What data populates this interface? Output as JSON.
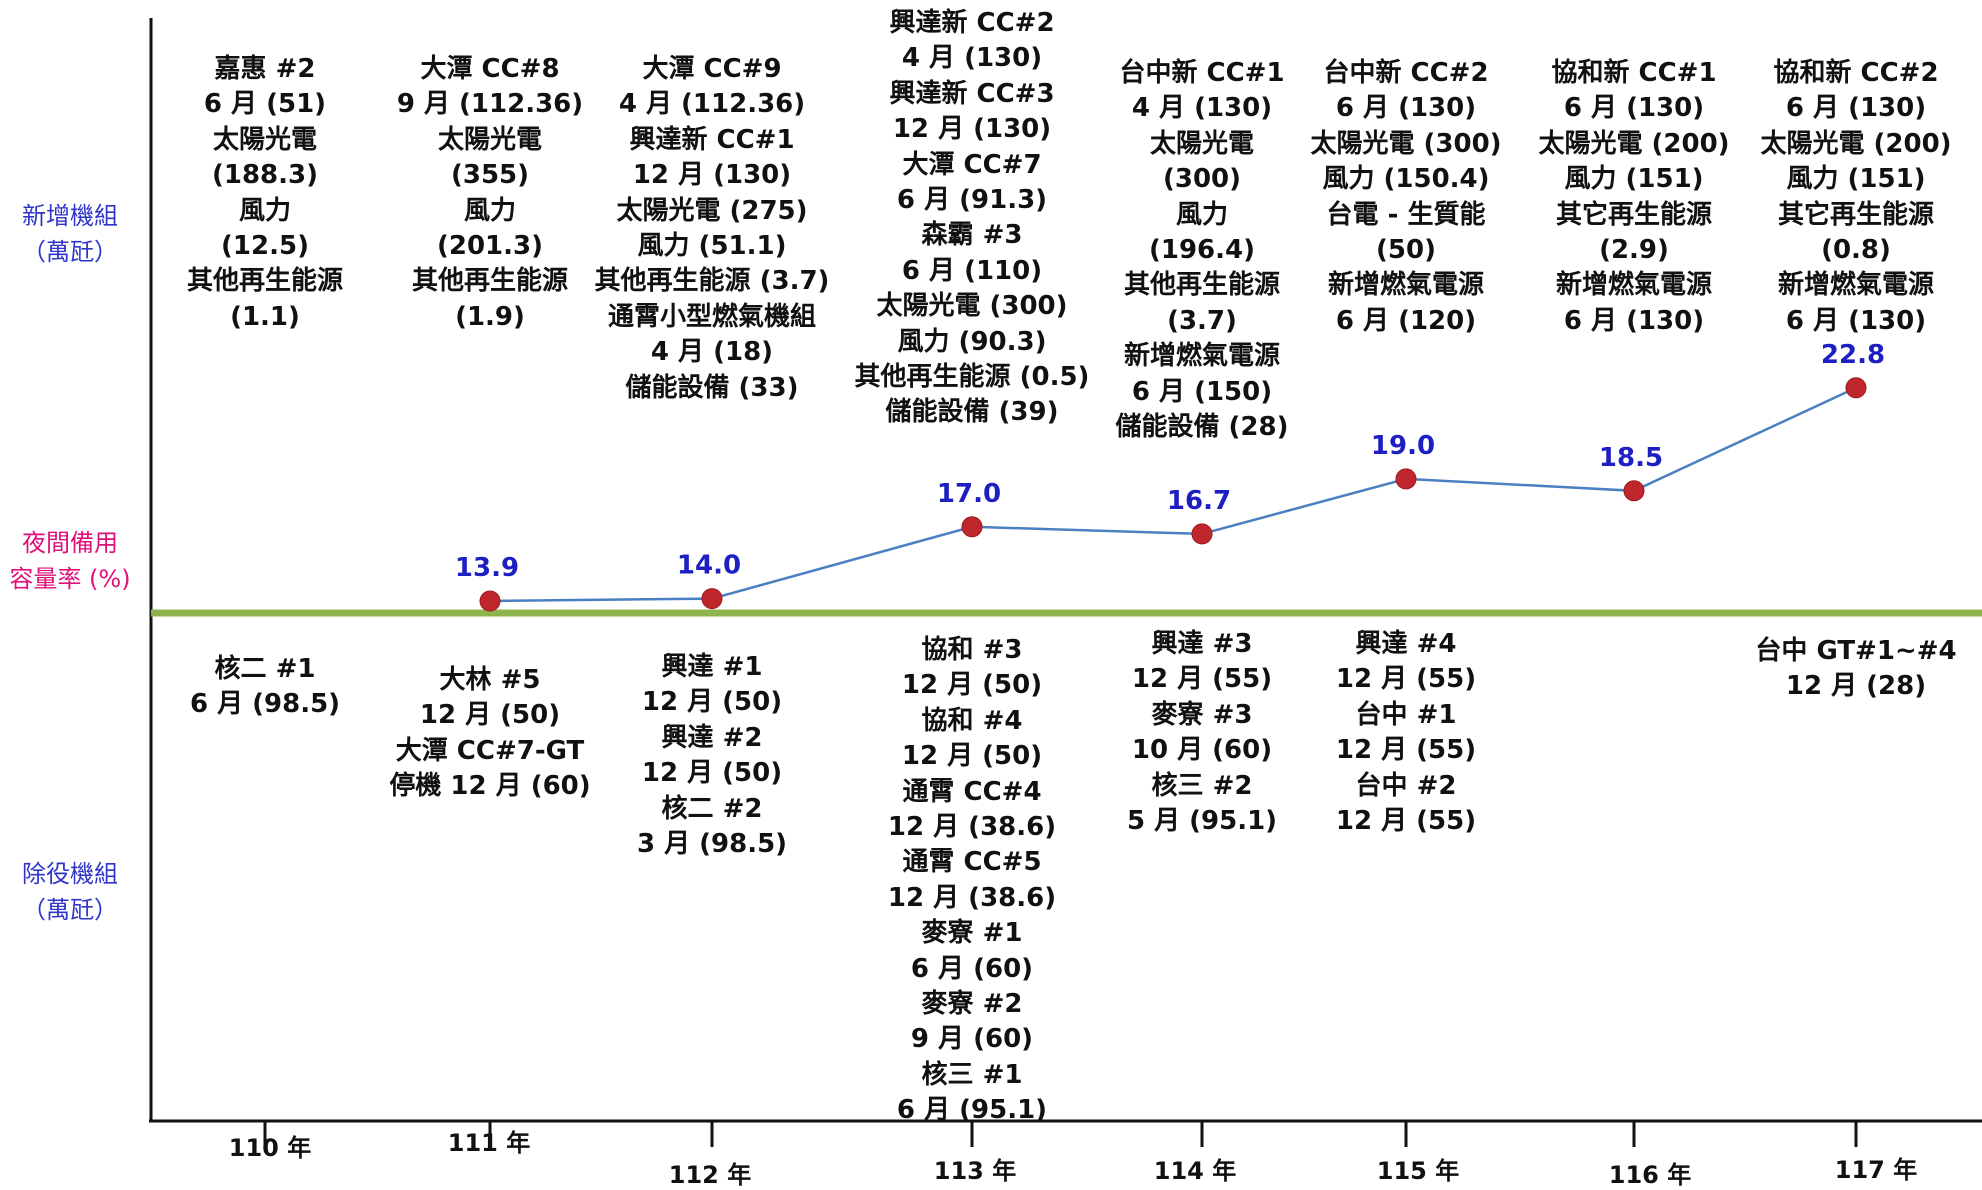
{
  "labels": {
    "new_units": [
      "新增機組",
      "（萬瓩）"
    ],
    "reserve": [
      "夜間備用",
      "容量率 (%)"
    ],
    "retired_units": [
      "除役機組",
      "（萬瓩）"
    ]
  },
  "additions": [
    [
      "嘉惠 #2",
      "6 月 (51)",
      "太陽光電",
      "(188.3)",
      "風力",
      "(12.5)",
      "其他再生能源",
      "(1.1)"
    ],
    [
      "大潭 CC#8",
      "9 月 (112.36)",
      "太陽光電",
      "(355)",
      "風力",
      "(201.3)",
      "其他再生能源",
      "(1.9)"
    ],
    [
      "大潭 CC#9",
      "4 月 (112.36)",
      "興達新 CC#1",
      "12 月 (130)",
      "太陽光電  (275)",
      "風力 (51.1)",
      "其他再生能源 (3.7)",
      "通霄小型燃氣機組",
      "4 月 (18)",
      "儲能設備 (33)"
    ],
    [
      "興達新 CC#2",
      "4 月 (130)",
      "興達新 CC#3",
      "12 月 (130)",
      "大潭 CC#7",
      "6 月 (91.3)",
      "森霸 #3",
      "6 月 (110)",
      "太陽光電  (300)",
      "風力 (90.3)",
      "其他再生能源 (0.5)",
      "儲能設備 (39)"
    ],
    [
      "台中新 CC#1",
      "4 月 (130)",
      "太陽光電",
      "(300)",
      "風力",
      "(196.4)",
      "其他再生能源",
      "(3.7)",
      "新增燃氣電源",
      "6 月 (150)",
      "儲能設備 (28)"
    ],
    [
      "台中新 CC#2",
      "6 月 (130)",
      "太陽光電 (300)",
      "風力 (150.4)",
      "台電 - 生質能",
      "(50)",
      "新增燃氣電源",
      "6 月 (120)"
    ],
    [
      "協和新 CC#1",
      "6 月 (130)",
      "太陽光電 (200)",
      "風力 (151)",
      "其它再生能源",
      "(2.9)",
      "新增燃氣電源",
      "6 月 (130)"
    ],
    [
      "協和新 CC#2",
      "6 月 (130)",
      "太陽光電 (200)",
      "風力 (151)",
      "其它再生能源",
      "(0.8)",
      "新增燃氣電源",
      "6 月 (130)"
    ]
  ],
  "retirements": [
    [
      "核二 #1",
      "6 月 (98.5)"
    ],
    [
      "大林 #5",
      "12 月 (50)",
      "大潭 CC#7-GT",
      "停機 12 月 (60)"
    ],
    [
      "興達 #1",
      "12 月 (50)",
      "興達 #2",
      "12 月 (50)",
      "核二 #2",
      "3 月 (98.5)"
    ],
    [
      "協和 #3",
      "12 月 (50)",
      "協和 #4",
      "12 月 (50)",
      "通霄 CC#4",
      "12 月 (38.6)",
      "通霄 CC#5",
      "12 月 (38.6)",
      "麥寮 #1",
      "6 月 (60)",
      "麥寮 #2",
      "9 月 (60)",
      "核三 #1",
      "6 月 (95.1)"
    ],
    [
      "興達 #3",
      "12 月 (55)",
      "麥寮 #3",
      "10 月 (60)",
      "核三 #2",
      "5 月 (95.1)"
    ],
    [
      "興達 #4",
      "12 月 (55)",
      "台中 #1",
      "12 月 (55)",
      "台中 #2",
      "12 月 (55)"
    ],
    [],
    [
      "台中 GT#1~#4",
      "12 月 (28)"
    ]
  ],
  "chart_data": {
    "type": "line",
    "categories": [
      "110 年",
      "111 年",
      "112 年",
      "113 年",
      "114 年",
      "115 年",
      "116 年",
      "117 年"
    ],
    "series": [
      {
        "values": [
          null,
          13.9,
          14.0,
          17.0,
          16.7,
          19.0,
          18.5,
          22.8
        ]
      }
    ],
    "value_labels": [
      "",
      "13.9",
      "14.0",
      "17.0",
      "16.7",
      "19.0",
      "18.5",
      "22.8"
    ],
    "colors": {
      "line": "#4a7fc1",
      "marker": "#c0272d",
      "value_text": "#1d1fc2",
      "divider": "#8db34a",
      "axis": "#111111"
    }
  }
}
